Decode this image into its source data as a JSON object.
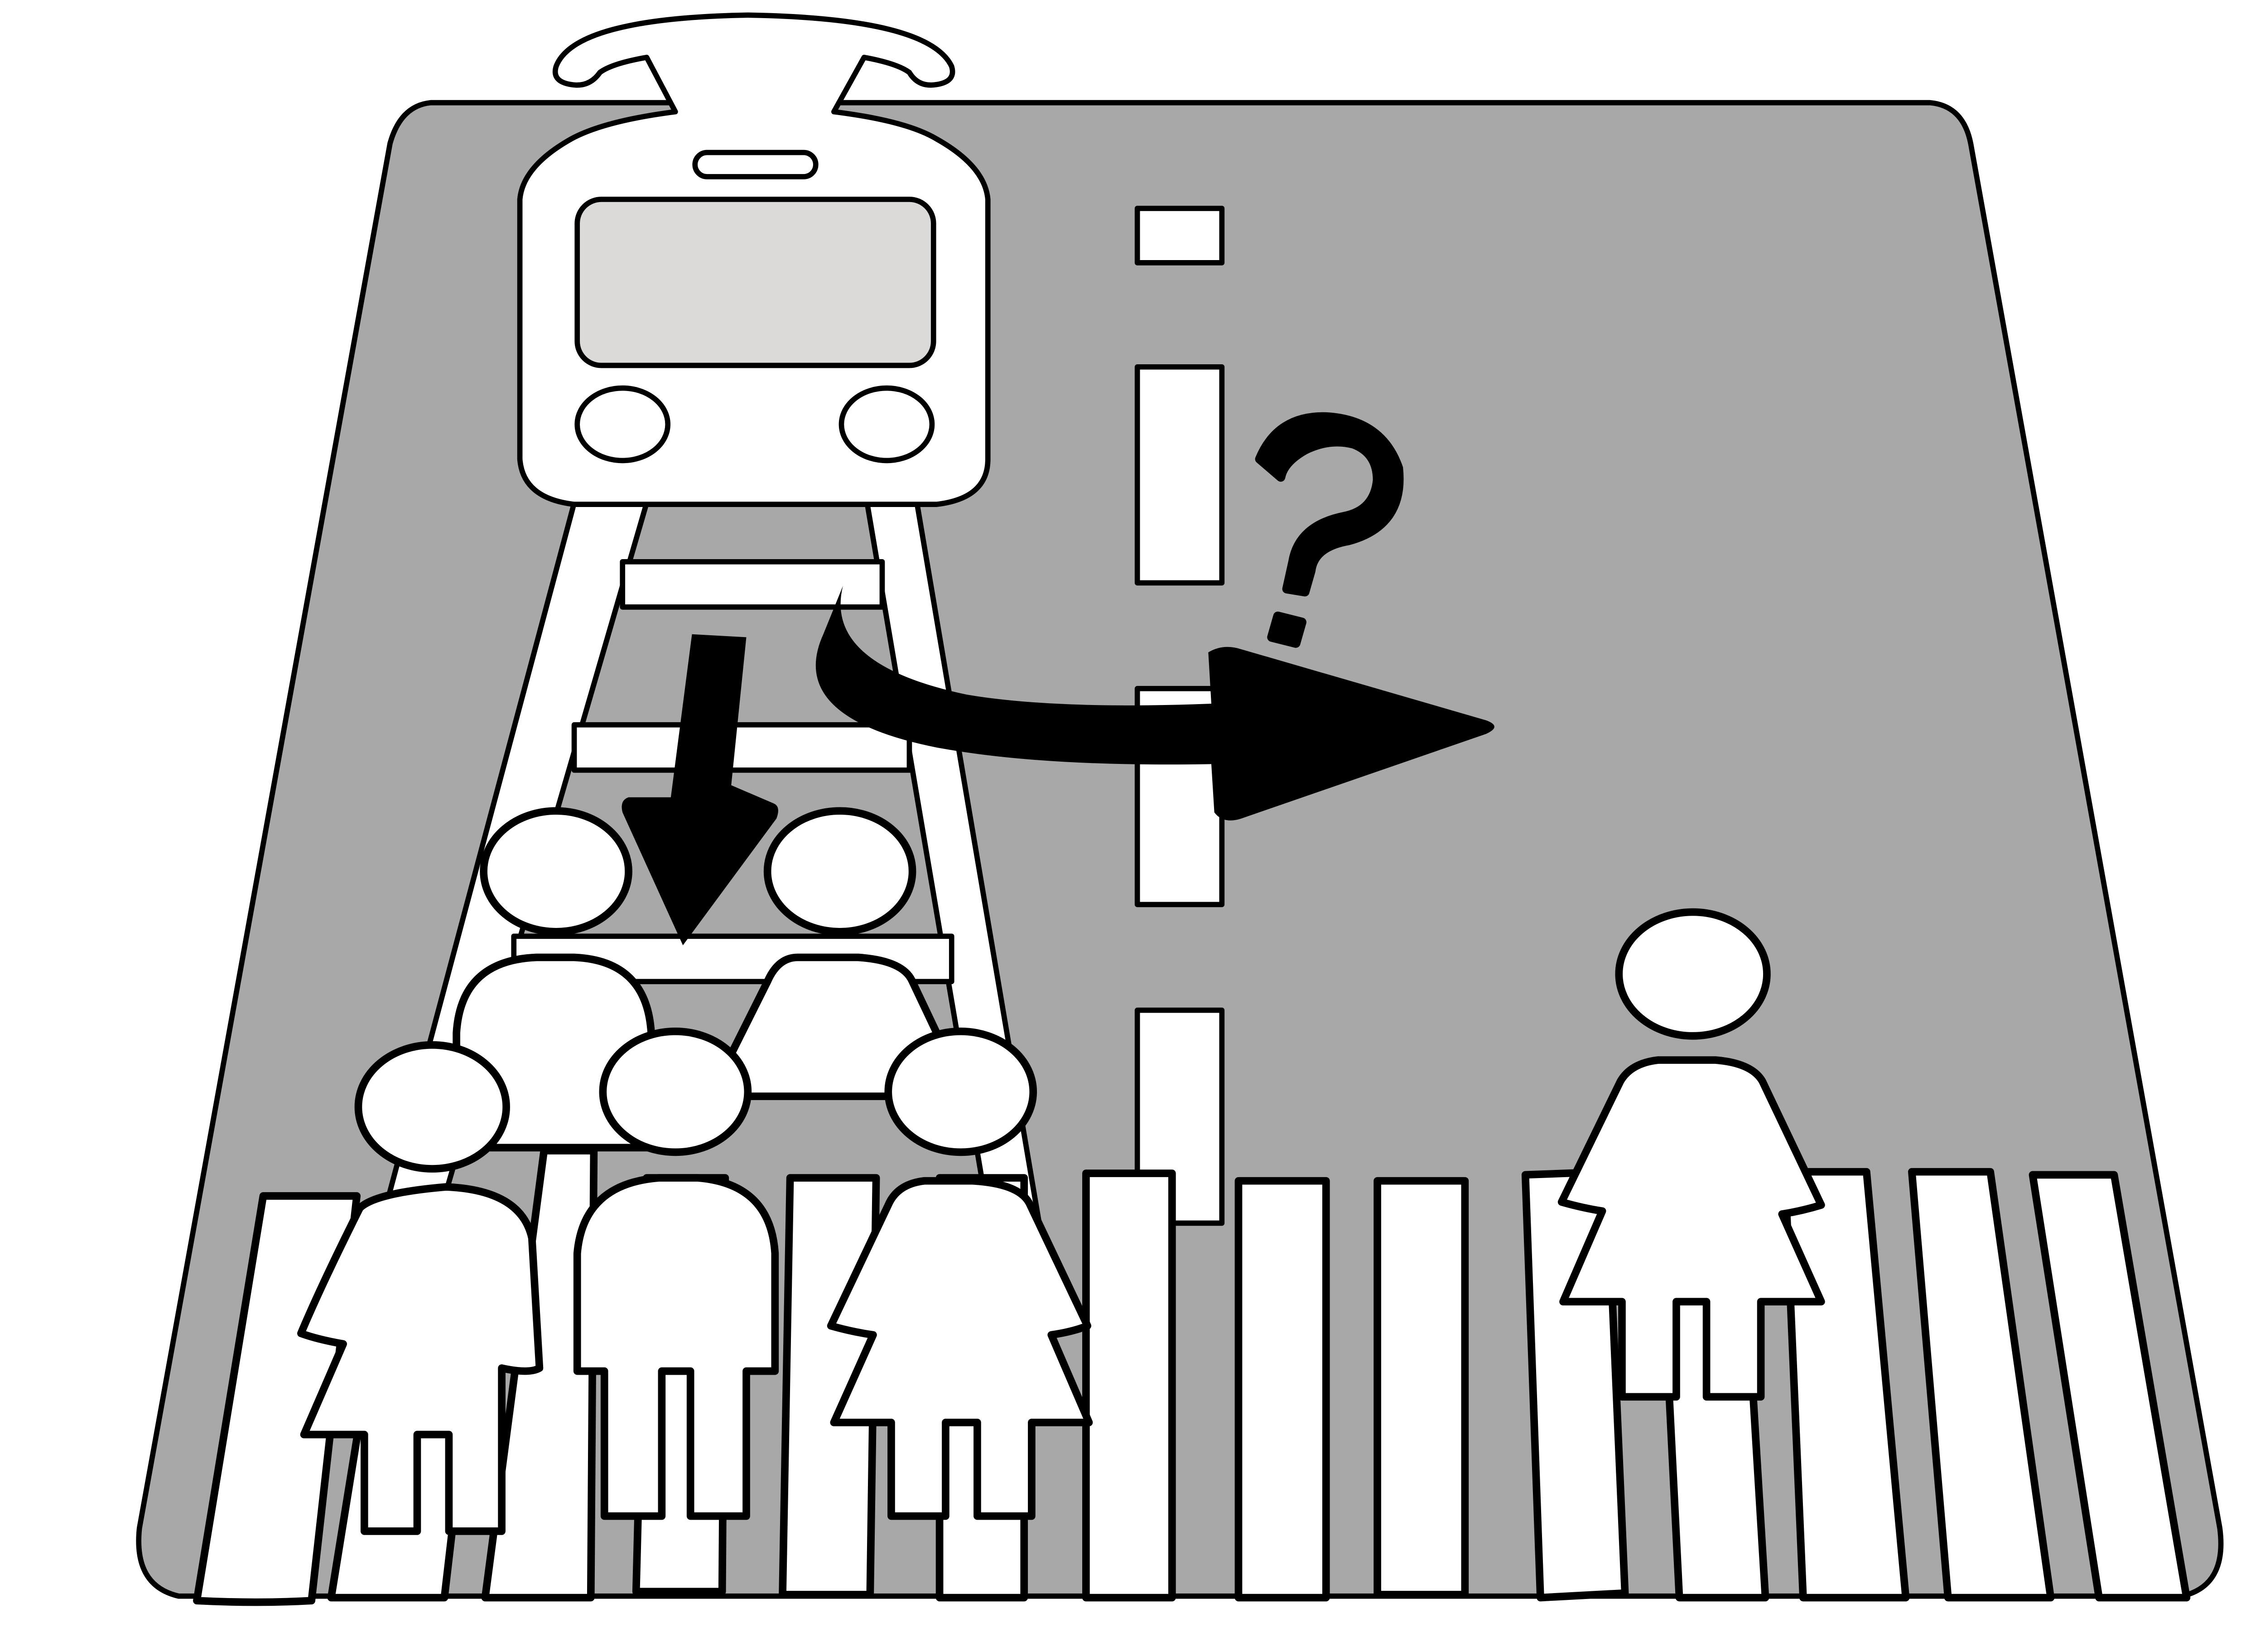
{
  "scene": {
    "question_mark": "?",
    "icons": [
      "tram-icon",
      "pedestrian-crowd-icon",
      "single-pedestrian-icon",
      "down-arrow-icon",
      "curved-right-arrow-icon",
      "question-mark-icon",
      "crosswalk-icon",
      "center-lane-markings"
    ],
    "colors": {
      "road": "#a8a8a8",
      "tram_window": "#dcdad9",
      "outline": "#000000",
      "fill": "#ffffff"
    },
    "pedestrians_in_crowd": 5,
    "pedestrians_alone": 1
  }
}
